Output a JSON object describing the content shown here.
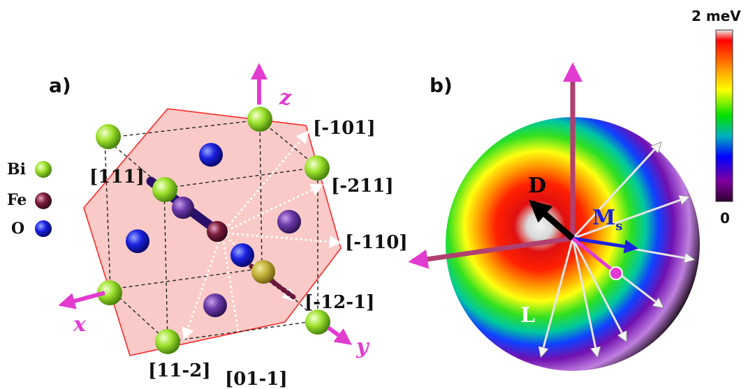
{
  "panel_a": {
    "label": "a)",
    "legend": [
      {
        "symbol": "Bi",
        "color": "#8fdc2a"
      },
      {
        "symbol": "Fe",
        "color": "#7a1c3a"
      },
      {
        "symbol": "O",
        "color": "#1a1ad6"
      }
    ],
    "directions": [
      "[111]",
      "[-101]",
      "[-211]",
      "[-110]",
      "[-12-1]",
      "[11-2]",
      "[01-1]"
    ],
    "axes": {
      "x": "x",
      "y": "y",
      "z": "z"
    }
  },
  "panel_b": {
    "label": "b)",
    "vectors": {
      "D": "D",
      "M": "M",
      "M_sub": "s",
      "L": "L"
    }
  },
  "colorbar": {
    "max_label": "2 meV",
    "min_label": "0",
    "colors": [
      "#ececec",
      "#ff0000",
      "#ffaa00",
      "#ffff00",
      "#00e000",
      "#00b0c0",
      "#0000ff",
      "#8000a0",
      "#300030"
    ]
  }
}
